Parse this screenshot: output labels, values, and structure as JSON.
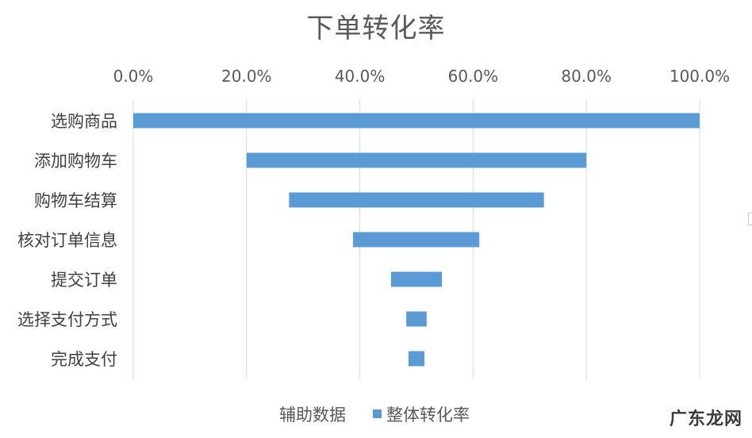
{
  "chart_data": {
    "type": "bar",
    "orientation": "horizontal",
    "stacked": true,
    "title": "下单转化率",
    "categories": [
      "选购商品",
      "添加购物车",
      "购物车结算",
      "核对订单信息",
      "提交订单",
      "选择支付方式",
      "完成支付"
    ],
    "series": [
      {
        "name": "辅助数据",
        "values": [
          0.0,
          0.2,
          0.275,
          0.388,
          0.455,
          0.482,
          0.486
        ],
        "visible": false
      },
      {
        "name": "整体转化率",
        "values": [
          1.0,
          0.6,
          0.45,
          0.223,
          0.09,
          0.036,
          0.028
        ],
        "color": "#5B9BD5"
      }
    ],
    "xlim": [
      0,
      1
    ],
    "xticks": [
      "0.0%",
      "20.0%",
      "40.0%",
      "60.0%",
      "80.0%",
      "100.0%"
    ],
    "axis_position": "top",
    "grid": true,
    "legend_position": "bottom"
  },
  "watermark": "广东龙网"
}
